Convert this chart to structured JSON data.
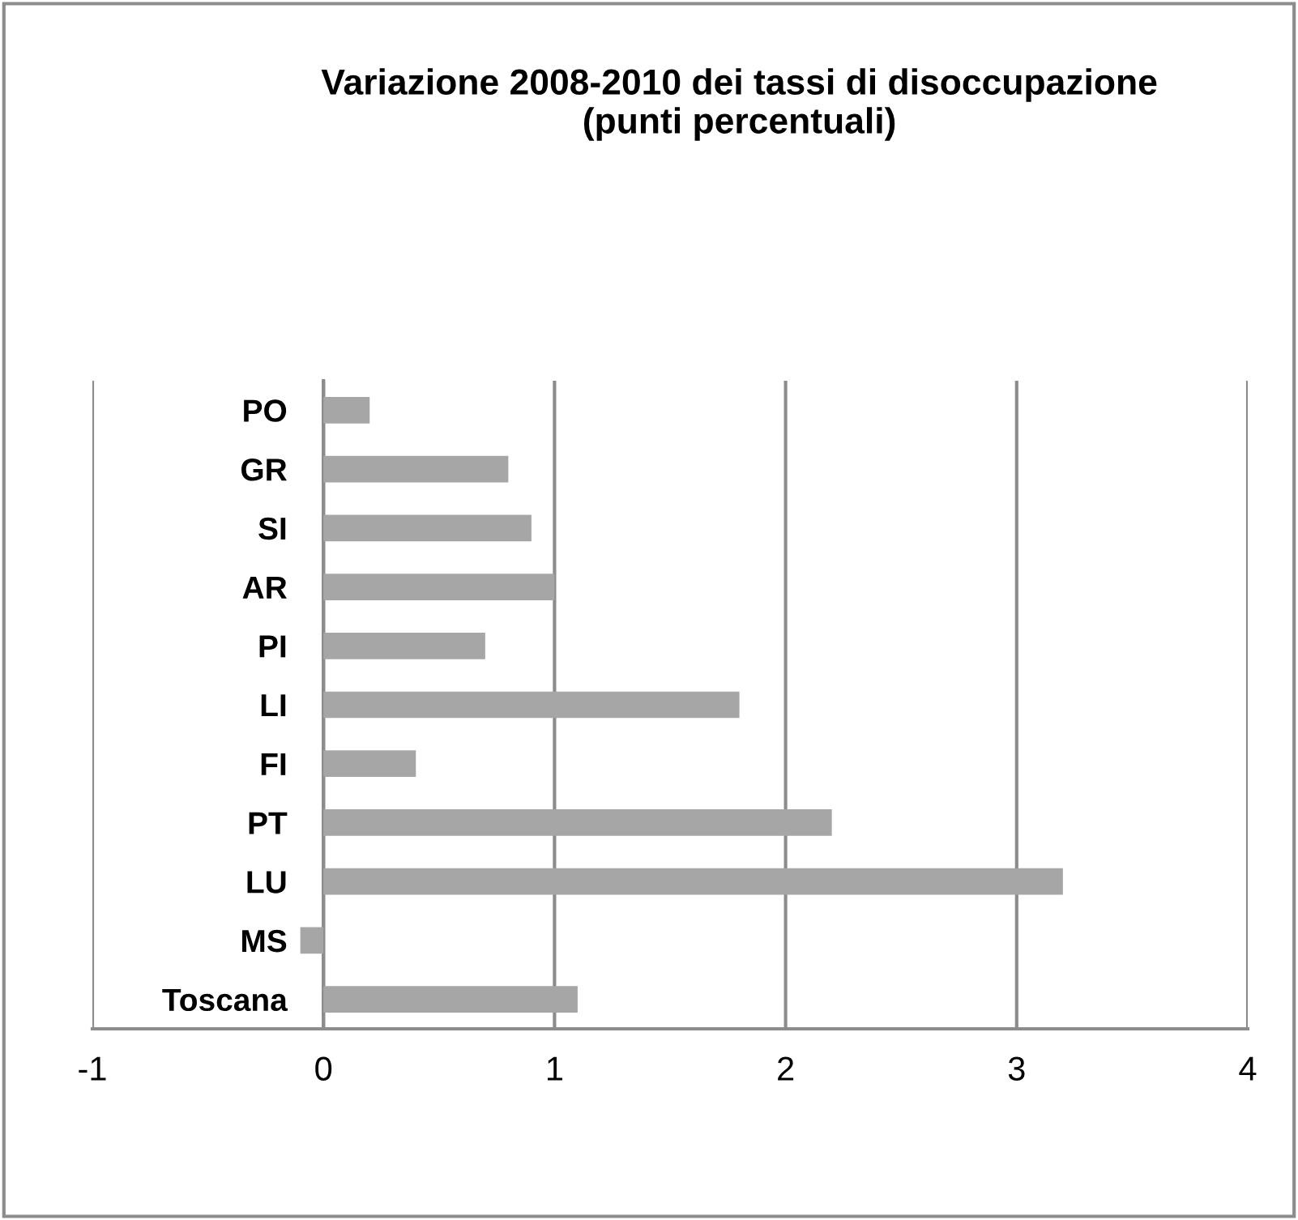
{
  "chart_data": {
    "type": "bar",
    "orientation": "horizontal",
    "title": "Variazione 2008-2010 dei tassi di disoccupazione\n(punti percentuali)",
    "categories": [
      "PO",
      "GR",
      "SI",
      "AR",
      "PI",
      "LI",
      "FI",
      "PT",
      "LU",
      "MS",
      "Toscana"
    ],
    "values": [
      0.2,
      0.8,
      0.9,
      1.0,
      0.7,
      1.8,
      0.4,
      2.2,
      3.2,
      -0.1,
      1.1
    ],
    "color": "#a6a6a6",
    "xlim": [
      -1,
      4
    ],
    "xticks": [
      -1,
      0,
      1,
      2,
      3,
      4
    ],
    "grid": "x"
  }
}
